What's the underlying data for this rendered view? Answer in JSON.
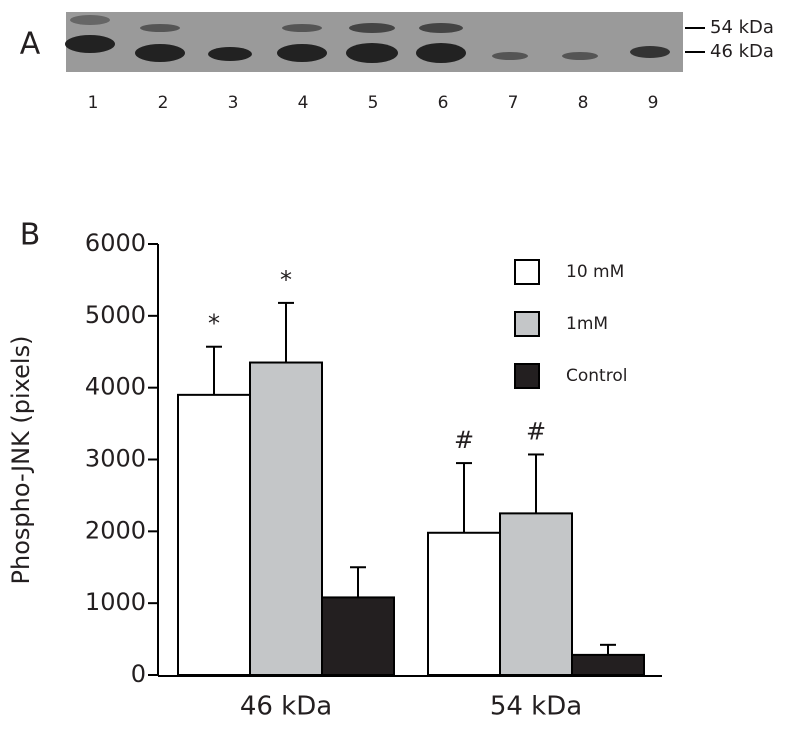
{
  "blot": {
    "label": "A",
    "bands": [
      "54 kDa",
      "46 kDa"
    ],
    "lanes": [
      "1",
      "2",
      "3",
      "4",
      "5",
      "6",
      "7",
      "8",
      "9"
    ]
  },
  "chart_data": {
    "type": "bar",
    "panel_label": "B",
    "y_label": "Phospho-JNK (pixels)",
    "categories": [
      "46 kDa",
      "54 kDa"
    ],
    "series": [
      {
        "name": "10 mM",
        "color": "#ffffff",
        "values": [
          3900,
          1980
        ],
        "errors": [
          670,
          970
        ],
        "annotations": [
          "*",
          "#"
        ]
      },
      {
        "name": "1mM",
        "color": "#c4c6c8",
        "values": [
          4350,
          2250
        ],
        "errors": [
          830,
          820
        ],
        "annotations": [
          "*",
          "#"
        ]
      },
      {
        "name": "Control",
        "color": "#231f20",
        "values": [
          1080,
          280
        ],
        "errors": [
          420,
          140
        ]
      }
    ],
    "ylim": [
      0,
      6000
    ],
    "yticks": [
      0,
      1000,
      2000,
      3000,
      4000,
      5000,
      6000
    ],
    "legend": "upper right"
  }
}
